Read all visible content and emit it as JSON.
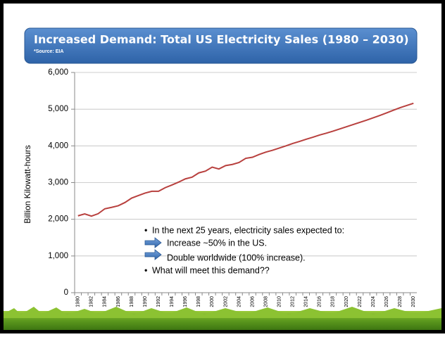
{
  "chart_data": {
    "type": "line",
    "title": "Increased Demand: Total US Electricity Sales (1980 – 2030)",
    "subtitle": "*Source: EIA",
    "y_label": "Billion Kilowatt-hours",
    "categories": [
      "1980",
      null,
      "1982",
      null,
      "1984",
      null,
      "1986",
      null,
      "1988",
      null,
      "1990",
      null,
      "1992",
      null,
      "1994",
      null,
      "1996",
      null,
      "1998",
      null,
      "2000",
      null,
      "2002",
      null,
      "2004",
      null,
      "2006",
      null,
      "2008",
      null,
      "2010",
      null,
      "2012",
      null,
      "2014",
      null,
      "2016",
      null,
      "2018",
      null,
      "2020",
      null,
      "2022",
      null,
      "2024",
      null,
      "2026",
      null,
      "2028",
      null,
      "2030"
    ],
    "series": [
      {
        "color": "#b8403e",
        "values": [
          2094,
          2147,
          2086,
          2151,
          2286,
          2324,
          2369,
          2457,
          2578,
          2647,
          2713,
          2762,
          2763,
          2861,
          2935,
          3013,
          3101,
          3146,
          3264,
          3312,
          3421,
          3370,
          3463,
          3494,
          3547,
          3661,
          3690,
          3765,
          3830,
          3880,
          3940,
          4000,
          4065,
          4120,
          4180,
          4235,
          4295,
          4345,
          4400,
          4460,
          4520,
          4580,
          4640,
          4700,
          4765,
          4830,
          4900,
          4970,
          5040,
          5100,
          5160
        ]
      }
    ],
    "ylim": [
      0,
      6000
    ],
    "yticks": [
      0,
      {
        "value": 1000,
        "label": "1,000"
      },
      {
        "value": 2000,
        "label": "2,000"
      },
      {
        "value": 3000,
        "label": "3,000"
      },
      {
        "value": 4000,
        "label": "4,000"
      },
      {
        "value": 5000,
        "label": "5,000"
      },
      {
        "value": 6000,
        "label": "6,000"
      }
    ],
    "grid": true,
    "notes": [
      "In the next 25 years, electricity sales expected to:",
      "Increase ~50% in the US.",
      "Double worldwide (100% increase).",
      "What will meet this demand??"
    ]
  }
}
